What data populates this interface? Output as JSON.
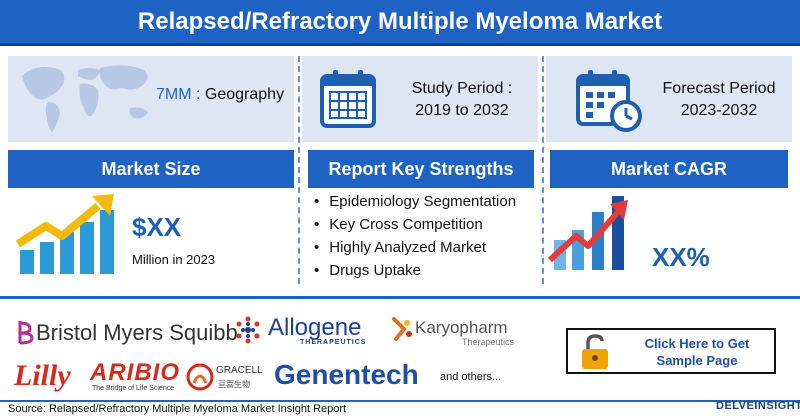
{
  "header": {
    "title": "Relapsed/Refractory Multiple Myeloma Market"
  },
  "geography": {
    "value": "7MM",
    "label": ": Geography"
  },
  "study_period": {
    "label": "Study Period :",
    "value": "2019 to 2032"
  },
  "forecast_period": {
    "label": "Forecast Period",
    "value": "2023-2032"
  },
  "market_size": {
    "heading": "Market Size",
    "value": "$XX",
    "note": "Million in 2023"
  },
  "strengths": {
    "heading": "Report Key Strengths",
    "items": [
      "Epidemiology Segmentation",
      "Key Cross Competition",
      "Highly Analyzed Market",
      "Drugs Uptake"
    ]
  },
  "cagr": {
    "heading": "Market CAGR",
    "value": "XX%"
  },
  "companies": {
    "bms": "Bristol Myers Squibb",
    "allogene": "Allogene",
    "allogene_sub": "THERAPEUTICS",
    "karyopharm": "Karyopharm",
    "karyopharm_sub": "Therapeutics",
    "lilly": "Lilly",
    "aribio": "ARIBIO",
    "aribio_sub": "The Bridge of Life Science",
    "gracell": "GRACELL",
    "gracell_sub": "亘喜生物",
    "genentech": "Genentech",
    "others": "and others..."
  },
  "cta": {
    "line1": "Click Here to Get",
    "line2": "Sample Page"
  },
  "footer": {
    "source": "Source: Relapsed/Refractory Multiple Myeloma Market Insight Report",
    "brand": "DELVEINSIGHT"
  },
  "colors": {
    "primary": "#1e63c4",
    "panel": "#dfe6f3",
    "arrow_yellow": "#f2b90f",
    "arrow_red": "#e53a3a",
    "bar_blue": "#2a9bd6"
  }
}
